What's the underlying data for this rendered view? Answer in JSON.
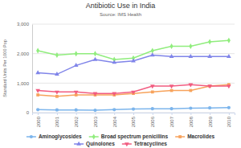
{
  "chart_data": {
    "type": "line",
    "title": "Antibiotic Use in India",
    "subtitle": "Source: IMS Health",
    "y_label": "Standard Units Per 1000 Pop",
    "categories": [
      "2000",
      "2001",
      "2002",
      "2003",
      "2004",
      "2005",
      "2006",
      "2007",
      "2008",
      "2009",
      "2010"
    ],
    "series": [
      {
        "name": "Aminoglycosides",
        "color": "#7cb5ec",
        "marker": "circle",
        "values": [
          100,
          90,
          90,
          80,
          100,
          120,
          130,
          130,
          150,
          160,
          170
        ]
      },
      {
        "name": "Broad spectrum penicillins",
        "color": "#90ed7d",
        "marker": "diamond",
        "values": [
          2100,
          1950,
          2000,
          2000,
          1800,
          1850,
          2100,
          2250,
          2250,
          2400,
          2450
        ]
      },
      {
        "name": "Macrolides",
        "color": "#f7a35c",
        "marker": "square",
        "values": [
          600,
          550,
          600,
          600,
          600,
          650,
          700,
          750,
          750,
          900,
          950
        ]
      },
      {
        "name": "Quinolones",
        "color": "#8085e9",
        "marker": "triangle",
        "values": [
          1350,
          1300,
          1600,
          1800,
          1700,
          1750,
          1950,
          1900,
          1900,
          1900,
          1900
        ]
      },
      {
        "name": "Tetracyclines",
        "color": "#f15c80",
        "marker": "triangle-down",
        "values": [
          750,
          700,
          700,
          650,
          650,
          700,
          900,
          900,
          950,
          900,
          900
        ]
      }
    ],
    "ylim": [
      0,
      3000
    ],
    "yticks": [
      0,
      {
        "value": 1000,
        "label": "1,000"
      },
      {
        "value": 2000,
        "label": "2,000"
      },
      {
        "value": 3000,
        "label": "3,000"
      }
    ],
    "grid": true,
    "legend": "bottom"
  }
}
